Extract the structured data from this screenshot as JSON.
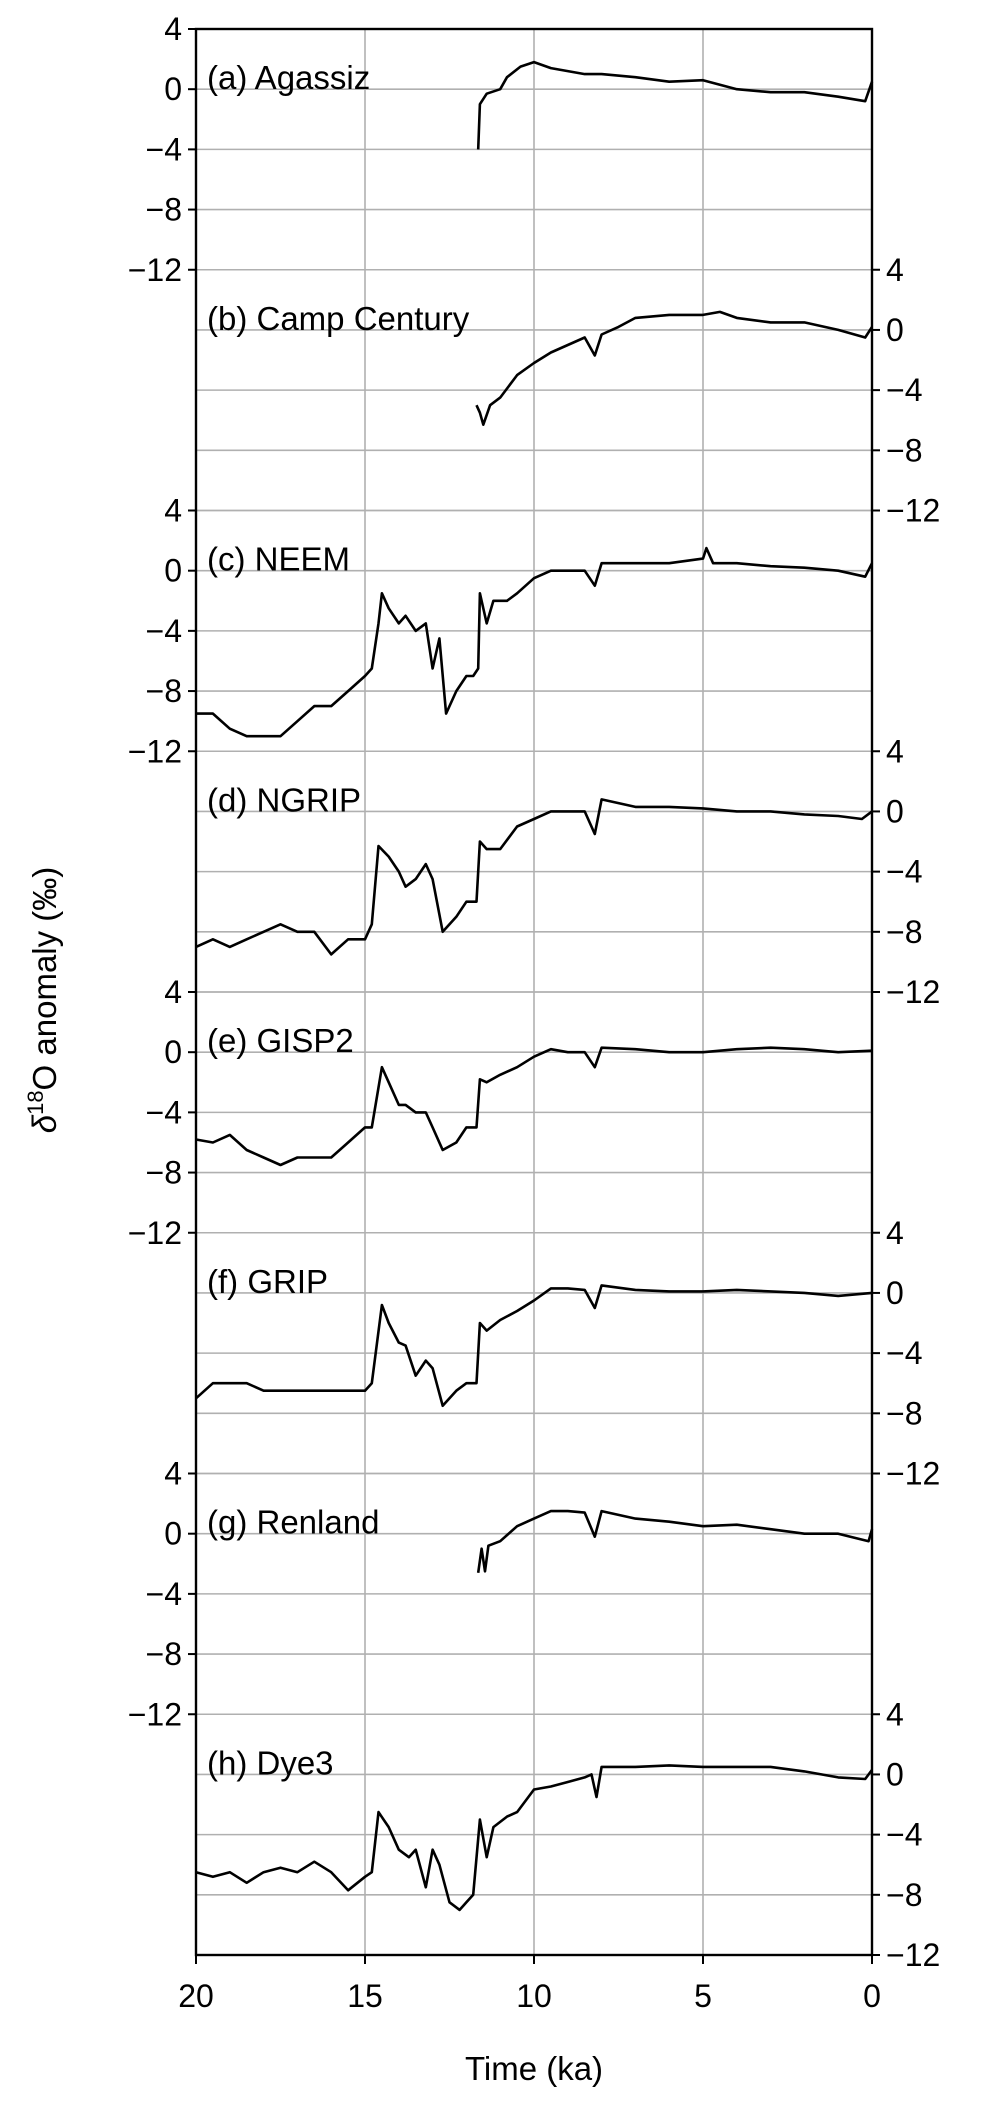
{
  "chart_data": {
    "type": "line",
    "layout": "stacked panels sharing the x axis, y axes alternating left/right",
    "xlabel": "Time (ka)",
    "ylabel": "δ18O anomaly (‰)",
    "ylabel_parts": {
      "delta": "δ",
      "sup": "18",
      "rest": "O anomaly (‰)"
    },
    "xlim": [
      20,
      0
    ],
    "x_reversed": true,
    "xticks": [
      20,
      15,
      10,
      5,
      0
    ],
    "xtick_labels": [
      "20",
      "15",
      "10",
      "5",
      "0"
    ],
    "ylim": [
      -12,
      4
    ],
    "yticks": [
      4,
      0,
      -4,
      -8,
      -12
    ],
    "ytick_labels": [
      "4",
      "0",
      "−4",
      "−8",
      "−12"
    ],
    "grid": true,
    "line_color": "#000000",
    "grid_color": "#b0b0b0",
    "panels": [
      {
        "label": "(a) Agassiz",
        "yaxis": "left",
        "x": [
          11.65,
          11.6,
          11.4,
          11.0,
          10.8,
          10.4,
          10.0,
          9.5,
          9.0,
          8.5,
          8.0,
          7.0,
          6.0,
          5.0,
          4.5,
          4.0,
          3.0,
          2.0,
          1.0,
          0.2,
          0.0
        ],
        "y": [
          -4,
          -1,
          -0.3,
          0,
          0.8,
          1.5,
          1.8,
          1.4,
          1.2,
          1.0,
          1.0,
          0.8,
          0.5,
          0.6,
          0.3,
          0,
          -0.2,
          -0.2,
          -0.5,
          -0.8,
          0.5
        ]
      },
      {
        "label": "(b) Camp Century",
        "yaxis": "right",
        "x": [
          11.7,
          11.6,
          11.5,
          11.3,
          11.0,
          10.5,
          10.0,
          9.5,
          9.0,
          8.5,
          8.2,
          8.0,
          7.5,
          7.0,
          6.0,
          5.0,
          4.5,
          4.0,
          3.0,
          2.0,
          1.0,
          0.2,
          0.0
        ],
        "y": [
          -5,
          -5.5,
          -6.3,
          -5,
          -4.5,
          -3,
          -2.2,
          -1.5,
          -1,
          -0.5,
          -1.7,
          -0.3,
          0.2,
          0.8,
          1.0,
          1.0,
          1.2,
          0.8,
          0.5,
          0.5,
          0,
          -0.5,
          0.2
        ]
      },
      {
        "label": "(c) NEEM",
        "yaxis": "left",
        "x": [
          20,
          19.5,
          19,
          18.5,
          18,
          17.5,
          17,
          16.5,
          16,
          15.5,
          15,
          14.8,
          14.6,
          14.5,
          14.3,
          14,
          13.8,
          13.5,
          13.2,
          13,
          12.8,
          12.6,
          12.3,
          12,
          11.8,
          11.65,
          11.6,
          11.4,
          11.2,
          10.8,
          10.5,
          10,
          9.5,
          9,
          8.5,
          8.2,
          8,
          7,
          6,
          5,
          4.9,
          4.7,
          4,
          3,
          2,
          1,
          0.2,
          0
        ],
        "y": [
          -9.5,
          -9.5,
          -10.5,
          -11,
          -11,
          -11,
          -10,
          -9,
          -9,
          -8,
          -7,
          -6.5,
          -3.5,
          -1.5,
          -2.5,
          -3.5,
          -3,
          -4,
          -3.5,
          -6.5,
          -4.5,
          -9.5,
          -8,
          -7,
          -7,
          -6.5,
          -1.5,
          -3.5,
          -2,
          -2,
          -1.5,
          -0.5,
          0,
          0,
          0,
          -1,
          0.5,
          0.5,
          0.5,
          0.8,
          1.5,
          0.5,
          0.5,
          0.3,
          0.2,
          0,
          -0.4,
          0.5
        ]
      },
      {
        "label": "(d) NGRIP",
        "yaxis": "right",
        "x": [
          20,
          19.5,
          19,
          18.5,
          18,
          17.5,
          17,
          16.5,
          16,
          15.5,
          15,
          14.8,
          14.6,
          14.3,
          14,
          13.8,
          13.5,
          13.2,
          13,
          12.7,
          12.3,
          12,
          11.7,
          11.6,
          11.4,
          11,
          10.5,
          10,
          9.5,
          9,
          8.5,
          8.2,
          8,
          7,
          6,
          5,
          4,
          3,
          2,
          1,
          0.3,
          0
        ],
        "y": [
          -9,
          -8.5,
          -9,
          -8.5,
          -8,
          -7.5,
          -8,
          -8,
          -9.5,
          -8.5,
          -8.5,
          -7.5,
          -2.3,
          -3,
          -4,
          -5,
          -4.5,
          -3.5,
          -4.5,
          -8,
          -7,
          -6,
          -6,
          -2,
          -2.5,
          -2.5,
          -1,
          -0.5,
          0,
          0,
          0,
          -1.5,
          0.8,
          0.3,
          0.3,
          0.2,
          0,
          0,
          -0.2,
          -0.3,
          -0.5,
          0
        ]
      },
      {
        "label": "(e) GISP2",
        "yaxis": "left",
        "x": [
          20,
          19.5,
          19,
          18.5,
          18,
          17.5,
          17,
          16.5,
          16,
          15.5,
          15,
          14.8,
          14.5,
          14.3,
          14,
          13.8,
          13.5,
          13.2,
          13,
          12.7,
          12.3,
          12,
          11.7,
          11.6,
          11.4,
          11,
          10.5,
          10,
          9.5,
          9,
          8.5,
          8.2,
          8,
          7,
          6,
          5,
          4,
          3,
          2,
          1,
          0
        ],
        "y": [
          -5.8,
          -6,
          -5.5,
          -6.5,
          -7,
          -7.5,
          -7,
          -7,
          -7,
          -6,
          -5,
          -5,
          -1,
          -2,
          -3.5,
          -3.5,
          -4,
          -4,
          -5,
          -6.5,
          -6,
          -5,
          -5,
          -1.8,
          -2,
          -1.5,
          -1,
          -0.3,
          0.2,
          0,
          0,
          -1,
          0.3,
          0.2,
          0,
          0,
          0.2,
          0.3,
          0.2,
          0,
          0.1
        ]
      },
      {
        "label": "(f) GRIP",
        "yaxis": "right",
        "x": [
          20,
          19.5,
          19,
          18.5,
          18,
          17.5,
          17,
          16.5,
          16,
          15.5,
          15,
          14.8,
          14.5,
          14.3,
          14,
          13.8,
          13.5,
          13.2,
          13,
          12.7,
          12.3,
          12,
          11.7,
          11.6,
          11.4,
          11,
          10.5,
          10,
          9.5,
          9,
          8.5,
          8.2,
          8,
          7,
          6,
          5,
          4,
          3,
          2,
          1,
          0
        ],
        "y": [
          -7,
          -6,
          -6,
          -6,
          -6.5,
          -6.5,
          -6.5,
          -6.5,
          -6.5,
          -6.5,
          -6.5,
          -6,
          -0.8,
          -2,
          -3.3,
          -3.5,
          -5.5,
          -4.5,
          -5,
          -7.5,
          -6.5,
          -6,
          -6,
          -2,
          -2.5,
          -1.8,
          -1.2,
          -0.5,
          0.3,
          0.3,
          0.2,
          -1,
          0.5,
          0.2,
          0.1,
          0.1,
          0.2,
          0.1,
          0,
          -0.2,
          0
        ]
      },
      {
        "label": "(g) Renland",
        "yaxis": "left",
        "x": [
          11.65,
          11.55,
          11.45,
          11.35,
          11.0,
          10.5,
          10.0,
          9.5,
          9.0,
          8.5,
          8.2,
          8.0,
          7.0,
          6.0,
          5.0,
          4.0,
          3.0,
          2.0,
          1.0,
          0.1,
          0.0
        ],
        "y": [
          -2.6,
          -1,
          -2.5,
          -0.8,
          -0.5,
          0.5,
          1.0,
          1.5,
          1.5,
          1.4,
          -0.2,
          1.5,
          1.0,
          0.8,
          0.5,
          0.6,
          0.3,
          0,
          0,
          -0.5,
          0.3
        ]
      },
      {
        "label": "(h) Dye3",
        "yaxis": "right",
        "x": [
          20,
          19.5,
          19,
          18.5,
          18,
          17.5,
          17,
          16.5,
          16,
          15.5,
          15,
          14.8,
          14.6,
          14.3,
          14,
          13.7,
          13.5,
          13.2,
          13,
          12.8,
          12.5,
          12.2,
          12,
          11.8,
          11.6,
          11.4,
          11.2,
          10.8,
          10.5,
          10,
          9.5,
          9,
          8.5,
          8.3,
          8.15,
          8,
          7,
          6,
          5,
          4,
          3,
          2,
          1,
          0.2,
          0
        ],
        "y": [
          -6.5,
          -6.8,
          -6.5,
          -7.2,
          -6.5,
          -6.2,
          -6.5,
          -5.8,
          -6.5,
          -7.7,
          -6.8,
          -6.5,
          -2.5,
          -3.5,
          -5,
          -5.5,
          -5,
          -7.5,
          -5,
          -6,
          -8.5,
          -9,
          -8.5,
          -8,
          -3,
          -5.5,
          -3.5,
          -2.8,
          -2.5,
          -1,
          -0.8,
          -0.5,
          -0.2,
          0,
          -1.5,
          0.5,
          0.5,
          0.6,
          0.5,
          0.5,
          0.5,
          0.2,
          -0.2,
          -0.3,
          0.3
        ]
      }
    ]
  }
}
